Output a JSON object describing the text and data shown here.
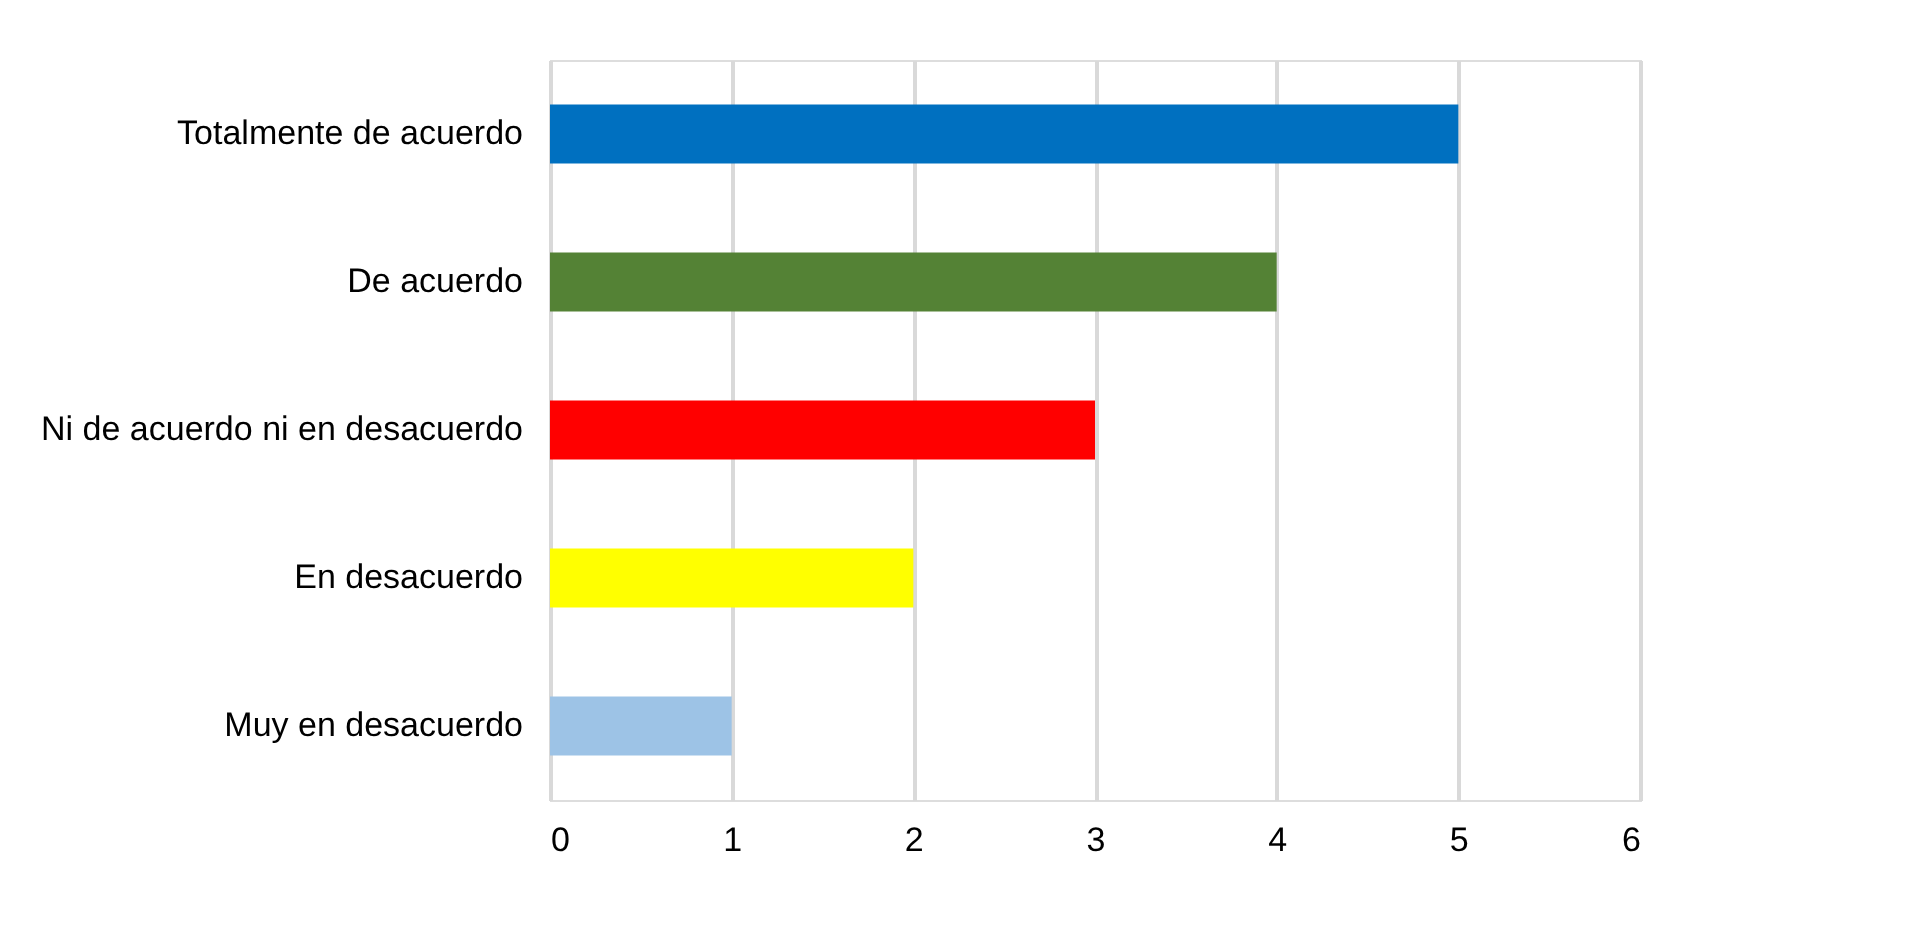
{
  "chart_data": {
    "type": "bar",
    "orientation": "horizontal",
    "categories": [
      "Totalmente de acuerdo",
      "De acuerdo",
      "Ni de acuerdo ni en desacuerdo",
      "En desacuerdo",
      "Muy en desacuerdo"
    ],
    "values": [
      5,
      4,
      3,
      2,
      1
    ],
    "colors": [
      "#0070c0",
      "#548235",
      "#ff0000",
      "#ffff00",
      "#9dc3e6"
    ],
    "xlim": [
      0,
      6
    ],
    "xticks": [
      0,
      1,
      2,
      3,
      4,
      5,
      6
    ],
    "grid": "x"
  }
}
